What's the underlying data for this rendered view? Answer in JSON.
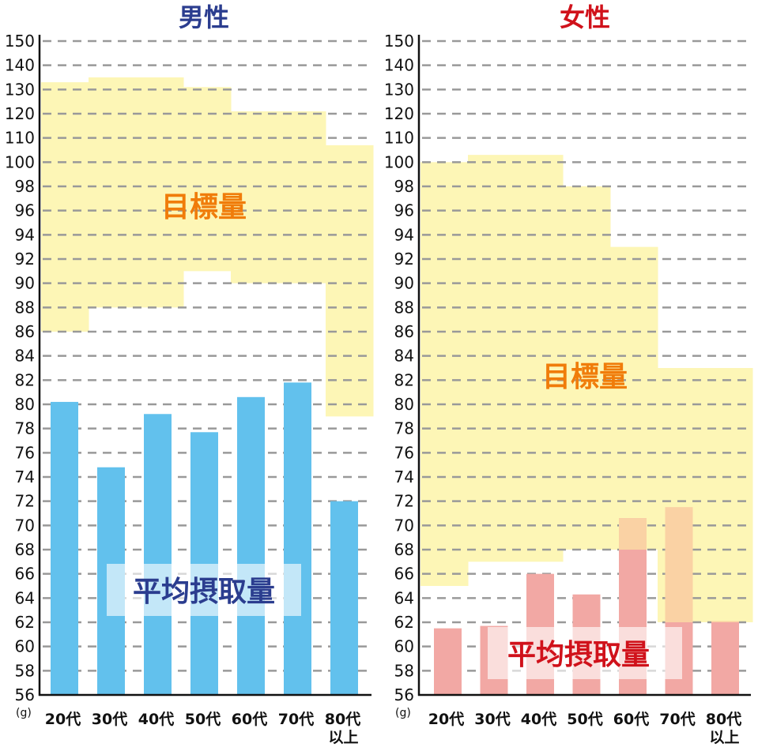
{
  "chart_data": [
    {
      "type": "bar",
      "title": "男性",
      "title_color": "#2b3d8f",
      "y_tick_labels": [
        "56",
        "58",
        "60",
        "62",
        "64",
        "66",
        "68",
        "70",
        "72",
        "74",
        "76",
        "78",
        "80",
        "82",
        "84",
        "86",
        "88",
        "90",
        "92",
        "94",
        "96",
        "98",
        "100",
        "110",
        "120",
        "130",
        "140",
        "150"
      ],
      "y_unit_label": "(g)",
      "categories": [
        "20代",
        "30代",
        "40代",
        "50代",
        "60代",
        "70代",
        "80代"
      ],
      "category_sublabels": [
        "",
        "",
        "",
        "",
        "",
        "",
        "以上"
      ],
      "series": [
        {
          "name": "平均摂取量",
          "values": [
            80.2,
            74.8,
            79.2,
            77.7,
            80.6,
            81.8,
            72.0
          ],
          "color": "#62c1ed"
        }
      ],
      "target_band": {
        "name": "目標量",
        "color": "#fdf6b6",
        "low": [
          86,
          88,
          88,
          91,
          90,
          90,
          79
        ],
        "high": [
          133,
          135,
          135,
          131,
          121,
          121,
          107
        ]
      },
      "label_colors": {
        "target": "#f07c0a",
        "intake": "#2b3d8f"
      }
    },
    {
      "type": "bar",
      "title": "女性",
      "title_color": "#d0121b",
      "y_tick_labels": [
        "56",
        "58",
        "60",
        "62",
        "64",
        "66",
        "68",
        "70",
        "72",
        "74",
        "76",
        "78",
        "80",
        "82",
        "84",
        "86",
        "88",
        "90",
        "92",
        "94",
        "96",
        "98",
        "100",
        "110",
        "120",
        "130",
        "140",
        "150"
      ],
      "y_unit_label": "(g)",
      "categories": [
        "20代",
        "30代",
        "40代",
        "50代",
        "60代",
        "70代",
        "80代"
      ],
      "category_sublabels": [
        "",
        "",
        "",
        "",
        "",
        "",
        "以上"
      ],
      "series": [
        {
          "name": "平均摂取量",
          "values": [
            61.5,
            61.7,
            66.0,
            64.3,
            70.6,
            71.5,
            62.1
          ],
          "color": "#f2a8a4"
        }
      ],
      "target_band": {
        "name": "目標量",
        "color": "#fdf6b6",
        "low": [
          65,
          67,
          67,
          68,
          68,
          62,
          62
        ],
        "high": [
          100,
          103,
          103,
          98,
          93,
          83,
          83
        ]
      },
      "label_colors": {
        "target": "#f07c0a",
        "intake": "#d0121b"
      }
    }
  ]
}
